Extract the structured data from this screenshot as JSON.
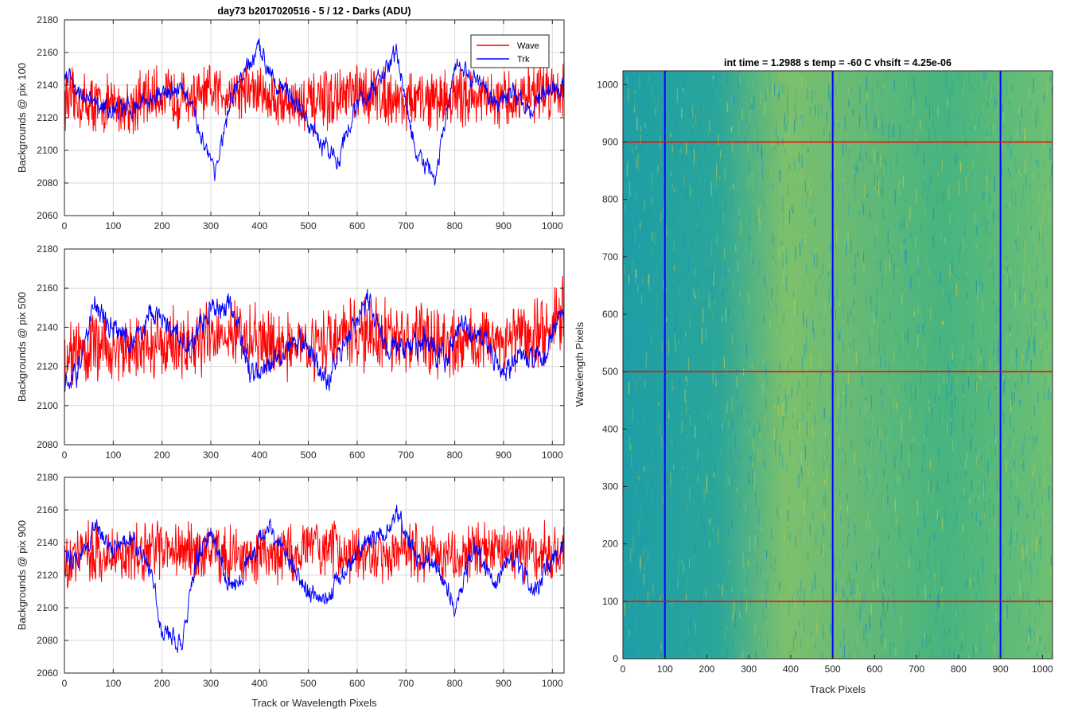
{
  "window": {
    "title": ""
  },
  "colors": {
    "wave": "#ff0000",
    "trk": "#0000ff",
    "grid": "#d9d9d9",
    "axis": "#262626",
    "heatmap_low": "#1e9ea6",
    "heatmap_mid": "#4bb97e",
    "heatmap_high": "#b7cc55"
  },
  "chart_data": [
    {
      "type": "line",
      "title": "day73 b2017020516 - 5 / 12 - Darks (ADU)",
      "xlabel": "",
      "ylabel": "Backgrounds @ pix 100",
      "xlim": [
        0,
        1024
      ],
      "ylim": [
        2060,
        2180
      ],
      "xticks": [
        0,
        100,
        200,
        300,
        400,
        500,
        600,
        700,
        800,
        900,
        1000
      ],
      "yticks": [
        2060,
        2080,
        2100,
        2120,
        2140,
        2160,
        2180
      ],
      "grid": true,
      "legend": "top-right",
      "series": [
        {
          "name": "Wave",
          "color": "#ff0000",
          "x": [
            0,
            64,
            128,
            192,
            256,
            320,
            384,
            448,
            512,
            576,
            640,
            704,
            768,
            832,
            896,
            960,
            1024
          ],
          "values": [
            2132,
            2128,
            2127,
            2134,
            2131,
            2136,
            2137,
            2130,
            2128,
            2133,
            2135,
            2130,
            2131,
            2134,
            2128,
            2136,
            2138
          ]
        },
        {
          "name": "Trk",
          "color": "#0000ff",
          "x": [
            0,
            40,
            80,
            120,
            160,
            200,
            240,
            280,
            310,
            350,
            400,
            440,
            480,
            520,
            560,
            600,
            640,
            680,
            720,
            760,
            800,
            840,
            880,
            920,
            960,
            1000,
            1024
          ],
          "values": [
            2150,
            2132,
            2126,
            2124,
            2130,
            2134,
            2140,
            2110,
            2088,
            2138,
            2162,
            2140,
            2128,
            2105,
            2095,
            2128,
            2140,
            2160,
            2098,
            2082,
            2150,
            2145,
            2130,
            2135,
            2125,
            2140,
            2135
          ]
        }
      ]
    },
    {
      "type": "line",
      "title": "",
      "xlabel": "",
      "ylabel": "Backgrounds @ pix 500",
      "xlim": [
        0,
        1024
      ],
      "ylim": [
        2080,
        2180
      ],
      "xticks": [
        0,
        100,
        200,
        300,
        400,
        500,
        600,
        700,
        800,
        900,
        1000
      ],
      "yticks": [
        2080,
        2100,
        2120,
        2140,
        2160,
        2180
      ],
      "grid": true,
      "series": [
        {
          "name": "Wave",
          "color": "#ff0000",
          "x": [
            0,
            64,
            128,
            192,
            256,
            320,
            384,
            448,
            512,
            576,
            640,
            704,
            768,
            832,
            896,
            960,
            1024
          ],
          "values": [
            2125,
            2130,
            2128,
            2132,
            2130,
            2138,
            2133,
            2130,
            2132,
            2135,
            2136,
            2134,
            2132,
            2133,
            2135,
            2136,
            2148
          ]
        },
        {
          "name": "Trk",
          "color": "#0000ff",
          "x": [
            0,
            30,
            60,
            100,
            140,
            180,
            220,
            260,
            300,
            340,
            380,
            420,
            460,
            500,
            540,
            580,
            620,
            660,
            700,
            740,
            780,
            820,
            860,
            900,
            940,
            980,
            1024
          ],
          "values": [
            2110,
            2118,
            2152,
            2140,
            2132,
            2148,
            2138,
            2130,
            2150,
            2152,
            2118,
            2122,
            2132,
            2130,
            2112,
            2136,
            2154,
            2130,
            2128,
            2132,
            2124,
            2142,
            2132,
            2118,
            2126,
            2124,
            2150
          ]
        }
      ]
    },
    {
      "type": "line",
      "title": "",
      "xlabel": "Track or Wavelength Pixels",
      "ylabel": "Backgrounds @ pix 900",
      "xlim": [
        0,
        1024
      ],
      "ylim": [
        2060,
        2180
      ],
      "xticks": [
        0,
        100,
        200,
        300,
        400,
        500,
        600,
        700,
        800,
        900,
        1000
      ],
      "yticks": [
        2060,
        2080,
        2100,
        2120,
        2140,
        2160,
        2180
      ],
      "grid": true,
      "series": [
        {
          "name": "Wave",
          "color": "#ff0000",
          "x": [
            0,
            64,
            128,
            192,
            256,
            320,
            384,
            448,
            512,
            576,
            640,
            704,
            768,
            832,
            896,
            960,
            1024
          ],
          "values": [
            2130,
            2135,
            2132,
            2136,
            2134,
            2133,
            2131,
            2133,
            2136,
            2134,
            2132,
            2135,
            2132,
            2134,
            2136,
            2133,
            2135
          ]
        },
        {
          "name": "Trk",
          "color": "#0000ff",
          "x": [
            0,
            30,
            60,
            100,
            140,
            180,
            200,
            240,
            270,
            300,
            340,
            380,
            420,
            460,
            500,
            540,
            580,
            620,
            660,
            680,
            720,
            760,
            800,
            840,
            880,
            920,
            960,
            1000,
            1024
          ],
          "values": [
            2135,
            2126,
            2150,
            2138,
            2140,
            2124,
            2085,
            2078,
            2128,
            2148,
            2110,
            2128,
            2152,
            2130,
            2110,
            2106,
            2125,
            2140,
            2145,
            2160,
            2132,
            2126,
            2100,
            2140,
            2115,
            2130,
            2110,
            2130,
            2138
          ]
        }
      ]
    },
    {
      "type": "heatmap",
      "title": "int time = 1.2988 s    temp = -60 C    vhsift = 4.25e-06",
      "xlabel": "Track Pixels",
      "ylabel": "Wavelength Pixels",
      "xlim": [
        0,
        1024
      ],
      "ylim": [
        0,
        1024
      ],
      "xticks": [
        0,
        100,
        200,
        300,
        400,
        500,
        600,
        700,
        800,
        900,
        1000
      ],
      "yticks": [
        0,
        100,
        200,
        300,
        400,
        500,
        600,
        700,
        800,
        900,
        1000
      ],
      "vertical_lines": [
        100,
        500,
        900
      ],
      "horizontal_lines": [
        100,
        500,
        900
      ],
      "vertical_line_color": "#0000ff",
      "horizontal_line_color": "#ff0000"
    }
  ]
}
